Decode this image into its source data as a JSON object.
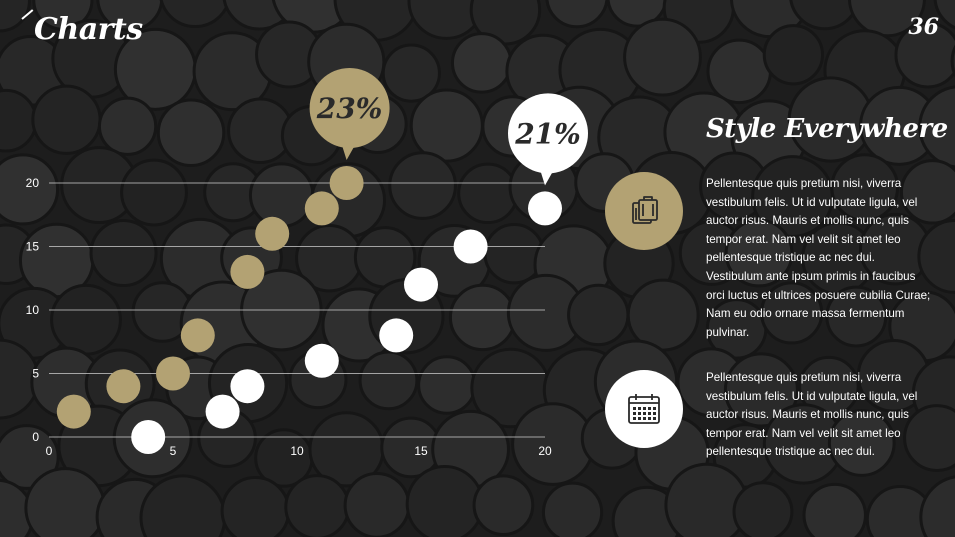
{
  "header": {
    "title": "Charts",
    "page_number": "36"
  },
  "chart_data": {
    "type": "scatter",
    "title": "",
    "xlabel": "",
    "ylabel": "",
    "xlim": [
      0,
      20
    ],
    "ylim": [
      0,
      20
    ],
    "x_ticks": [
      "0",
      "5",
      "10",
      "15",
      "20"
    ],
    "y_ticks": [
      "0",
      "5",
      "10",
      "15",
      "20"
    ],
    "grid": "horizontal",
    "series": [
      {
        "color": "#b3a273",
        "points": [
          [
            1,
            2
          ],
          [
            3,
            4
          ],
          [
            5,
            5
          ],
          [
            6,
            8
          ],
          [
            8,
            13
          ],
          [
            9,
            16
          ],
          [
            11,
            18
          ],
          [
            12,
            20
          ]
        ],
        "callout": {
          "label": "23%",
          "point_index": 7
        }
      },
      {
        "color": "#ffffff",
        "points": [
          [
            4,
            0
          ],
          [
            7,
            2
          ],
          [
            8,
            4
          ],
          [
            11,
            6
          ],
          [
            14,
            8
          ],
          [
            15,
            12
          ],
          [
            17,
            15
          ],
          [
            20,
            18
          ]
        ],
        "callout": {
          "label": "21%",
          "point_index": 7
        }
      }
    ]
  },
  "side": {
    "heading": "Style Everywhere",
    "blocks": [
      {
        "icon": "luggage-icon",
        "text": "Pellentesque quis pretium nisi, viverra vestibulum felis. Ut id vulputate ligula, vel auctor risus. Mauris et mollis nunc, quis tempor erat. Nam vel velit sit amet leo pellentesque tristique ac nec dui. Vestibulum ante ipsum primis in faucibus orci luctus et ultrices posuere cubilia Curae; Nam eu odio ornare massa fermentum pulvinar."
      },
      {
        "icon": "calendar-icon",
        "text": "Pellentesque quis pretium nisi, viverra vestibulum felis. Ut id vulputate ligula, vel auctor risus. Mauris et mollis nunc, quis tempor erat. Nam vel velit sit amet leo pellentesque tristique ac nec dui."
      }
    ]
  },
  "colors": {
    "accent": "#b3a273",
    "background": "#1d1d1d",
    "text": "#ffffff"
  }
}
